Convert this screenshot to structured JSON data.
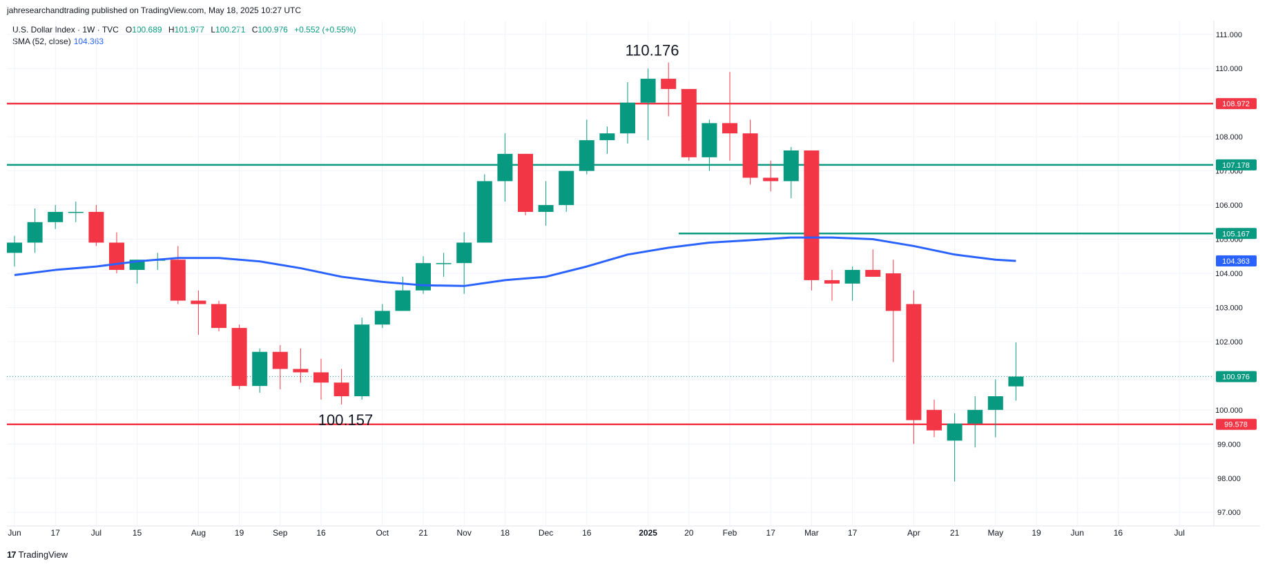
{
  "header": {
    "published": "jahresearchandtrading published on TradingView.com, May 18, 2025 10:27 UTC"
  },
  "legend": {
    "symbol": "U.S. Dollar Index · 1W · TVC",
    "open_label": "O",
    "open": "100.689",
    "high_label": "H",
    "high": "101.977",
    "low_label": "L",
    "low": "100.271",
    "close_label": "C",
    "close": "100.976",
    "change": "+0.552 (+0.55%)",
    "sma_label": "SMA (52, close)",
    "sma_value": "104.363"
  },
  "footer": {
    "logo_text": "TradingView"
  },
  "colors": {
    "up": "#089981",
    "down": "#f23645",
    "sma": "#2962ff",
    "grid": "#f0f3fa",
    "axis_text": "#131722"
  },
  "chart_data": {
    "type": "candlestick",
    "timeframe": "1W",
    "ylim": [
      96.6,
      111.4
    ],
    "y_ticks": [
      "97.000",
      "98.000",
      "99.000",
      "100.000",
      "101.000",
      "102.000",
      "103.000",
      "104.000",
      "105.000",
      "106.000",
      "107.000",
      "108.000",
      "109.000",
      "110.000",
      "111.000"
    ],
    "y_tick_values": [
      97,
      98,
      99,
      100,
      101,
      102,
      103,
      104,
      105,
      106,
      107,
      108,
      109,
      110,
      111
    ],
    "x_ticks": [
      {
        "label": "Jun",
        "i": 0
      },
      {
        "label": "17",
        "i": 2
      },
      {
        "label": "Jul",
        "i": 4
      },
      {
        "label": "15",
        "i": 6
      },
      {
        "label": "Aug",
        "i": 9
      },
      {
        "label": "19",
        "i": 11
      },
      {
        "label": "Sep",
        "i": 13
      },
      {
        "label": "16",
        "i": 15
      },
      {
        "label": "Oct",
        "i": 18
      },
      {
        "label": "21",
        "i": 20
      },
      {
        "label": "Nov",
        "i": 22
      },
      {
        "label": "18",
        "i": 24
      },
      {
        "label": "Dec",
        "i": 26
      },
      {
        "label": "16",
        "i": 28
      },
      {
        "label": "2025",
        "i": 31,
        "bold": true
      },
      {
        "label": "20",
        "i": 33
      },
      {
        "label": "Feb",
        "i": 35
      },
      {
        "label": "17",
        "i": 37
      },
      {
        "label": "Mar",
        "i": 39
      },
      {
        "label": "17",
        "i": 41
      },
      {
        "label": "Apr",
        "i": 44
      },
      {
        "label": "21",
        "i": 46
      },
      {
        "label": "May",
        "i": 48
      },
      {
        "label": "19",
        "i": 50
      },
      {
        "label": "Jun",
        "i": 52
      },
      {
        "label": "16",
        "i": 54
      },
      {
        "label": "Jul",
        "i": 57
      }
    ],
    "candles": [
      {
        "o": 104.6,
        "h": 105.1,
        "l": 104.2,
        "c": 104.9
      },
      {
        "o": 104.9,
        "h": 105.9,
        "l": 104.6,
        "c": 105.5
      },
      {
        "o": 105.5,
        "h": 106.0,
        "l": 105.3,
        "c": 105.8
      },
      {
        "o": 105.8,
        "h": 106.1,
        "l": 105.5,
        "c": 105.8
      },
      {
        "o": 105.8,
        "h": 106.0,
        "l": 104.8,
        "c": 104.9
      },
      {
        "o": 104.9,
        "h": 105.2,
        "l": 104.0,
        "c": 104.1
      },
      {
        "o": 104.1,
        "h": 104.4,
        "l": 103.7,
        "c": 104.4
      },
      {
        "o": 104.4,
        "h": 104.6,
        "l": 104.1,
        "c": 104.4
      },
      {
        "o": 104.4,
        "h": 104.8,
        "l": 103.1,
        "c": 103.2
      },
      {
        "o": 103.2,
        "h": 103.5,
        "l": 102.2,
        "c": 103.1
      },
      {
        "o": 103.1,
        "h": 103.2,
        "l": 102.3,
        "c": 102.4
      },
      {
        "o": 102.4,
        "h": 102.5,
        "l": 100.6,
        "c": 100.7
      },
      {
        "o": 100.7,
        "h": 101.8,
        "l": 100.5,
        "c": 101.7
      },
      {
        "o": 101.7,
        "h": 101.9,
        "l": 100.6,
        "c": 101.2
      },
      {
        "o": 101.2,
        "h": 101.8,
        "l": 100.8,
        "c": 101.1
      },
      {
        "o": 101.1,
        "h": 101.5,
        "l": 100.3,
        "c": 100.8
      },
      {
        "o": 100.8,
        "h": 101.2,
        "l": 100.157,
        "c": 100.4
      },
      {
        "o": 100.4,
        "h": 102.7,
        "l": 100.3,
        "c": 102.5
      },
      {
        "o": 102.5,
        "h": 103.1,
        "l": 102.4,
        "c": 102.9
      },
      {
        "o": 102.9,
        "h": 103.9,
        "l": 102.9,
        "c": 103.5
      },
      {
        "o": 103.5,
        "h": 104.5,
        "l": 103.4,
        "c": 104.3
      },
      {
        "o": 104.3,
        "h": 104.6,
        "l": 103.9,
        "c": 104.3
      },
      {
        "o": 104.3,
        "h": 105.2,
        "l": 103.4,
        "c": 104.9
      },
      {
        "o": 104.9,
        "h": 106.9,
        "l": 104.9,
        "c": 106.7
      },
      {
        "o": 106.7,
        "h": 108.1,
        "l": 106.1,
        "c": 107.5
      },
      {
        "o": 107.5,
        "h": 107.5,
        "l": 105.7,
        "c": 105.8
      },
      {
        "o": 105.8,
        "h": 106.7,
        "l": 105.4,
        "c": 106.0
      },
      {
        "o": 106.0,
        "h": 107.0,
        "l": 105.8,
        "c": 107.0
      },
      {
        "o": 107.0,
        "h": 108.5,
        "l": 106.9,
        "c": 107.9
      },
      {
        "o": 107.9,
        "h": 108.3,
        "l": 107.5,
        "c": 108.1
      },
      {
        "o": 108.1,
        "h": 109.6,
        "l": 107.8,
        "c": 109.0
      },
      {
        "o": 109.0,
        "h": 110.0,
        "l": 107.9,
        "c": 109.7
      },
      {
        "o": 109.7,
        "h": 110.176,
        "l": 108.6,
        "c": 109.4
      },
      {
        "o": 109.4,
        "h": 109.4,
        "l": 107.3,
        "c": 107.4
      },
      {
        "o": 107.4,
        "h": 108.5,
        "l": 107.0,
        "c": 108.4
      },
      {
        "o": 108.4,
        "h": 109.9,
        "l": 107.3,
        "c": 108.1
      },
      {
        "o": 108.1,
        "h": 108.5,
        "l": 106.6,
        "c": 106.8
      },
      {
        "o": 106.8,
        "h": 107.3,
        "l": 106.4,
        "c": 106.7
      },
      {
        "o": 106.7,
        "h": 107.7,
        "l": 106.2,
        "c": 107.6
      },
      {
        "o": 107.6,
        "h": 107.6,
        "l": 103.5,
        "c": 103.8
      },
      {
        "o": 103.8,
        "h": 104.1,
        "l": 103.2,
        "c": 103.7
      },
      {
        "o": 103.7,
        "h": 104.2,
        "l": 103.2,
        "c": 104.1
      },
      {
        "o": 104.1,
        "h": 104.7,
        "l": 103.9,
        "c": 103.9
      },
      {
        "o": 104.0,
        "h": 104.4,
        "l": 101.4,
        "c": 102.9
      },
      {
        "o": 103.1,
        "h": 103.5,
        "l": 99.0,
        "c": 99.7
      },
      {
        "o": 100.0,
        "h": 100.3,
        "l": 99.2,
        "c": 99.4
      },
      {
        "o": 99.1,
        "h": 99.9,
        "l": 97.9,
        "c": 99.6
      },
      {
        "o": 99.6,
        "h": 100.4,
        "l": 98.9,
        "c": 100.0
      },
      {
        "o": 100.0,
        "h": 100.9,
        "l": 99.2,
        "c": 100.4
      },
      {
        "o": 100.689,
        "h": 101.977,
        "l": 100.271,
        "c": 100.976
      }
    ],
    "sma": {
      "name": "SMA (52, close)",
      "points": [
        {
          "i": 0,
          "v": 103.95
        },
        {
          "i": 2,
          "v": 104.1
        },
        {
          "i": 4,
          "v": 104.2
        },
        {
          "i": 6,
          "v": 104.35
        },
        {
          "i": 8,
          "v": 104.45
        },
        {
          "i": 10,
          "v": 104.45
        },
        {
          "i": 12,
          "v": 104.35
        },
        {
          "i": 14,
          "v": 104.15
        },
        {
          "i": 16,
          "v": 103.9
        },
        {
          "i": 18,
          "v": 103.75
        },
        {
          "i": 20,
          "v": 103.65
        },
        {
          "i": 22,
          "v": 103.63
        },
        {
          "i": 24,
          "v": 103.8
        },
        {
          "i": 26,
          "v": 103.9
        },
        {
          "i": 28,
          "v": 104.2
        },
        {
          "i": 30,
          "v": 104.55
        },
        {
          "i": 32,
          "v": 104.75
        },
        {
          "i": 34,
          "v": 104.9
        },
        {
          "i": 36,
          "v": 104.97
        },
        {
          "i": 38,
          "v": 105.05
        },
        {
          "i": 40,
          "v": 105.05
        },
        {
          "i": 42,
          "v": 105.0
        },
        {
          "i": 44,
          "v": 104.8
        },
        {
          "i": 46,
          "v": 104.55
        },
        {
          "i": 48,
          "v": 104.4
        },
        {
          "i": 49,
          "v": 104.363
        }
      ]
    },
    "levels": [
      {
        "value": 108.972,
        "label": "108.972",
        "color": "#f23645",
        "from_i": 0
      },
      {
        "value": 107.178,
        "label": "107.178",
        "color": "#089981",
        "from_i": 0
      },
      {
        "value": 105.167,
        "label": "105.167",
        "color": "#089981",
        "from_i": 32.5
      },
      {
        "value": 99.578,
        "label": "99.578",
        "color": "#f23645",
        "from_i": 0
      }
    ],
    "price_labels": [
      {
        "value": 104.363,
        "label": "104.363",
        "color": "#2962ff"
      },
      {
        "value": 100.976,
        "label": "100.976",
        "color": "#089981"
      }
    ],
    "current_price": 100.976,
    "annotations": [
      {
        "text": "110.176",
        "i": 31.2,
        "value": 110.176,
        "pos": "above"
      },
      {
        "text": "100.157",
        "i": 16.2,
        "value": 100.157,
        "pos": "below"
      }
    ]
  }
}
